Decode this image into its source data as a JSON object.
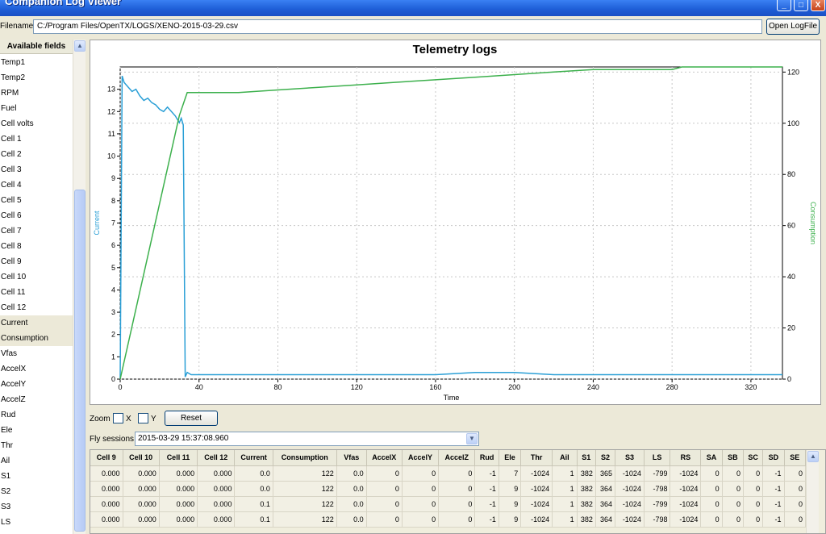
{
  "window": {
    "title": "Companion Log Viewer",
    "minimize": "_",
    "maximize": "□",
    "close": "X"
  },
  "file": {
    "label": "Filename",
    "path": "C:/Program Files/OpenTX/LOGS/XENO-2015-03-29.csv",
    "open_button": "Open LogFile"
  },
  "fields": {
    "header": "Available fields",
    "items": [
      "Temp1",
      "Temp2",
      "RPM",
      "Fuel",
      "Cell volts",
      "Cell 1",
      "Cell 2",
      "Cell 3",
      "Cell 4",
      "Cell 5",
      "Cell 6",
      "Cell 7",
      "Cell 8",
      "Cell 9",
      "Cell 10",
      "Cell 11",
      "Cell 12",
      "Current",
      "Consumption",
      "Vfas",
      "AccelX",
      "AccelY",
      "AccelZ",
      "Rud",
      "Ele",
      "Thr",
      "Ail",
      "S1",
      "S2",
      "S3",
      "LS"
    ],
    "selected": [
      "Current",
      "Consumption"
    ]
  },
  "zoom": {
    "label": "Zoom",
    "x_label": "X",
    "y_label": "Y",
    "reset_label": "Reset"
  },
  "fly": {
    "label": "Fly sessions",
    "selected": "2015-03-29 15:37:08.960"
  },
  "colors": {
    "current": "#2a9fd6",
    "consumption": "#3cb04c"
  },
  "chart_data": {
    "type": "line",
    "title": "Telemetry logs",
    "xlabel": "Time",
    "ylabel_left": "Current",
    "ylabel_right": "Consumption",
    "xlim": [
      0,
      336
    ],
    "x_ticks": [
      "0",
      "40",
      "80",
      "120",
      "160",
      "200",
      "240",
      "280",
      "320"
    ],
    "ylim_left": [
      0,
      14
    ],
    "y_ticks_left": [
      "0",
      "1",
      "2",
      "3",
      "4",
      "5",
      "6",
      "7",
      "8",
      "9",
      "10",
      "11",
      "12",
      "13"
    ],
    "ylim_right": [
      0,
      122
    ],
    "y_ticks_right": [
      "0",
      "20",
      "40",
      "60",
      "80",
      "100",
      "120"
    ],
    "grid": true,
    "series": [
      {
        "name": "Current",
        "axis": "left",
        "x": [
          0,
          1,
          2,
          4,
          6,
          8,
          10,
          12,
          14,
          16,
          18,
          20,
          22,
          24,
          26,
          28,
          30,
          31,
          32,
          33,
          34,
          36,
          40,
          60,
          80,
          100,
          120,
          140,
          160,
          180,
          200,
          220,
          240,
          260,
          280,
          300,
          320,
          336
        ],
        "y": [
          0,
          13.6,
          13.3,
          13.1,
          12.9,
          13.0,
          12.7,
          12.5,
          12.6,
          12.4,
          12.3,
          12.1,
          12.0,
          12.2,
          12.0,
          11.8,
          11.5,
          11.7,
          11.4,
          0.1,
          0.3,
          0.2,
          0.2,
          0.2,
          0.2,
          0.2,
          0.2,
          0.2,
          0.2,
          0.3,
          0.3,
          0.2,
          0.2,
          0.2,
          0.2,
          0.2,
          0.2,
          0.2
        ]
      },
      {
        "name": "Consumption",
        "axis": "right",
        "x": [
          0,
          30,
          34,
          60,
          80,
          100,
          120,
          140,
          160,
          180,
          200,
          220,
          240,
          260,
          280,
          285,
          336
        ],
        "y": [
          0,
          103,
          112,
          112,
          113,
          114,
          115,
          116,
          117,
          118,
          119,
          120,
          121,
          121,
          121,
          122,
          122
        ]
      }
    ]
  },
  "table": {
    "columns": [
      "Cell 9",
      "Cell 10",
      "Cell 11",
      "Cell 12",
      "Current",
      "Consumption",
      "Vfas",
      "AccelX",
      "AccelY",
      "AccelZ",
      "Rud",
      "Ele",
      "Thr",
      "Ail",
      "S1",
      "S2",
      "S3",
      "LS",
      "RS",
      "SA",
      "SB",
      "SC",
      "SD",
      "SE"
    ],
    "rows": [
      [
        "0.000",
        "0.000",
        "0.000",
        "0.000",
        "0.0",
        "122",
        "0.0",
        "0",
        "0",
        "0",
        "-1",
        "7",
        "-1024",
        "1",
        "382",
        "365",
        "-1024",
        "-799",
        "-1024",
        "0",
        "0",
        "0",
        "-1",
        "0"
      ],
      [
        "0.000",
        "0.000",
        "0.000",
        "0.000",
        "0.0",
        "122",
        "0.0",
        "0",
        "0",
        "0",
        "-1",
        "9",
        "-1024",
        "1",
        "382",
        "364",
        "-1024",
        "-798",
        "-1024",
        "0",
        "0",
        "0",
        "-1",
        "0"
      ],
      [
        "0.000",
        "0.000",
        "0.000",
        "0.000",
        "0.1",
        "122",
        "0.0",
        "0",
        "0",
        "0",
        "-1",
        "9",
        "-1024",
        "1",
        "382",
        "364",
        "-1024",
        "-799",
        "-1024",
        "0",
        "0",
        "0",
        "-1",
        "0"
      ],
      [
        "0.000",
        "0.000",
        "0.000",
        "0.000",
        "0.1",
        "122",
        "0.0",
        "0",
        "0",
        "0",
        "-1",
        "9",
        "-1024",
        "1",
        "382",
        "364",
        "-1024",
        "-798",
        "-1024",
        "0",
        "0",
        "0",
        "-1",
        "0"
      ]
    ]
  }
}
